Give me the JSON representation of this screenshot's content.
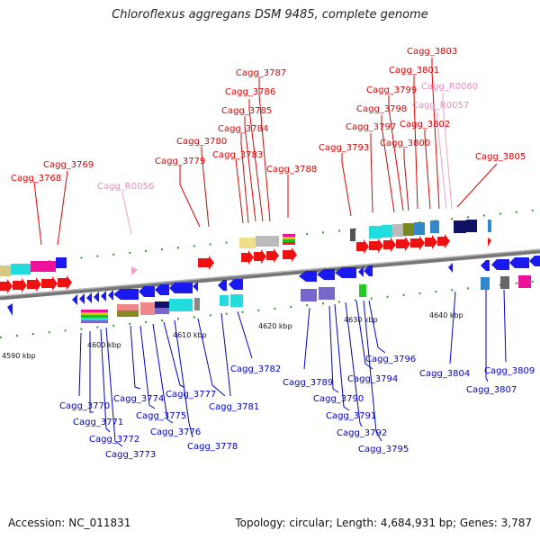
{
  "title": "Chloroflexus aggregans DSM 9485, complete genome",
  "footer": {
    "accession": "Accession: NC_011831",
    "summary": "Topology: circular; Length: 4,684,931 bp; Genes: 3,787"
  },
  "colors": {
    "forward_label": "#dd0000",
    "reverse_label": "#0000cc",
    "rna_label": "#ee88bb",
    "axis": "#888888"
  },
  "ticks": [
    "4590 kbp",
    "4600 kbp",
    "4610 kbp",
    "4620 kbp",
    "4630 kbp",
    "4640 kbp"
  ],
  "genes_top": [
    "Cagg_3768",
    "Cagg_3769",
    "Cagg_R0056",
    "Cagg_3779",
    "Cagg_3780",
    "Cagg_3783",
    "Cagg_3784",
    "Cagg_3785",
    "Cagg_3786",
    "Cagg_3787",
    "Cagg_3788",
    "Cagg_3793",
    "Cagg_3797",
    "Cagg_3798",
    "Cagg_3799",
    "Cagg_3800",
    "Cagg_3801",
    "Cagg_3802",
    "Cagg_3803",
    "Cagg_R0060",
    "Cagg_R0057",
    "Cagg_3805"
  ],
  "genes_bottom": [
    "Cagg_3770",
    "Cagg_3771",
    "Cagg_3772",
    "Cagg_3773",
    "Cagg_3774",
    "Cagg_3775",
    "Cagg_3776",
    "Cagg_3777",
    "Cagg_3778",
    "Cagg_3781",
    "Cagg_3782",
    "Cagg_3789",
    "Cagg_3790",
    "Cagg_3791",
    "Cagg_3792",
    "Cagg_3794",
    "Cagg_3795",
    "Cagg_3796",
    "Cagg_3804",
    "Cagg_3807",
    "Cagg_3809"
  ]
}
